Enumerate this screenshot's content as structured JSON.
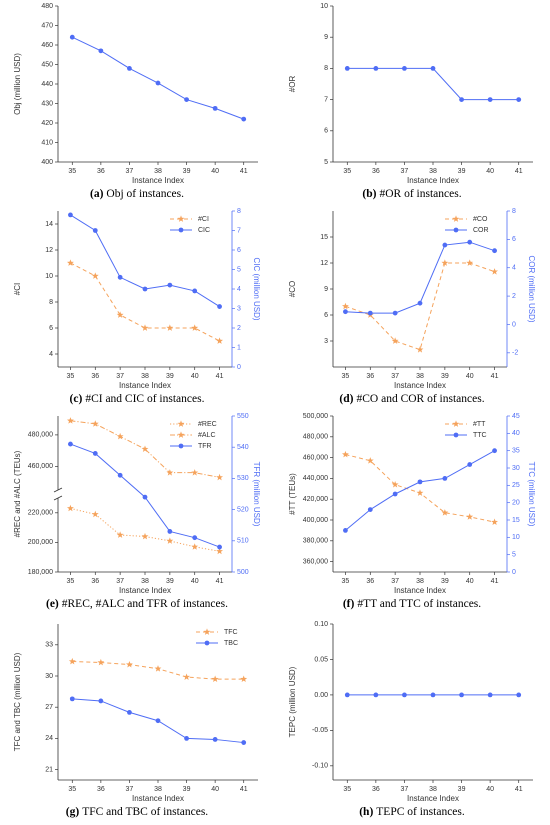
{
  "chart_data": [
    {
      "type": "line",
      "caption": {
        "label": "(a)",
        "text": "Obj of instances."
      },
      "xlabel": "Instance Index",
      "ylabel": "Obj (million USD)",
      "x": [
        35,
        36,
        37,
        38,
        39,
        40,
        41
      ],
      "xlim": [
        34.5,
        41.5
      ],
      "xticks": [
        35,
        36,
        37,
        38,
        39,
        40,
        41
      ],
      "ylim": [
        400,
        480
      ],
      "yticks": [
        400,
        410,
        420,
        430,
        440,
        450,
        460,
        470,
        480
      ],
      "series": [
        {
          "name": "Obj",
          "color": "#4f6df5",
          "style": "solid",
          "marker": "circle",
          "values": [
            464,
            457,
            448,
            440.5,
            432,
            427.5,
            422
          ]
        }
      ]
    },
    {
      "type": "line",
      "caption": {
        "label": "(b)",
        "text": "#OR of instances."
      },
      "xlabel": "Instance Index",
      "ylabel": "#OR",
      "x": [
        35,
        36,
        37,
        38,
        39,
        40,
        41
      ],
      "xlim": [
        34.5,
        41.5
      ],
      "xticks": [
        35,
        36,
        37,
        38,
        39,
        40,
        41
      ],
      "ylim": [
        5,
        10
      ],
      "yticks": [
        5,
        6,
        7,
        8,
        9,
        10
      ],
      "series": [
        {
          "name": "#OR",
          "color": "#4f6df5",
          "style": "solid",
          "marker": "circle",
          "values": [
            8,
            8,
            8,
            8,
            7,
            7,
            7
          ]
        }
      ]
    },
    {
      "type": "line",
      "caption": {
        "label": "(c)",
        "text": "#CI and CIC of instances."
      },
      "xlabel": "Instance Index",
      "ylabel": "#CI",
      "y2label": "CIC (million USD)",
      "x": [
        35,
        36,
        37,
        38,
        39,
        40,
        41
      ],
      "xlim": [
        34.5,
        41.5
      ],
      "xticks": [
        35,
        36,
        37,
        38,
        39,
        40,
        41
      ],
      "ylim": [
        3,
        15
      ],
      "yticks": [
        4,
        6,
        8,
        10,
        12,
        14
      ],
      "y2lim": [
        0,
        8
      ],
      "y2ticks": [
        0,
        1,
        2,
        3,
        4,
        5,
        6,
        7,
        8
      ],
      "y2color": "#4f6df5",
      "legend": "upper right",
      "series": [
        {
          "name": "#CI",
          "color": "#f5a35c",
          "style": "dashed",
          "marker": "star",
          "values": [
            11,
            10,
            7,
            6,
            6,
            6,
            5
          ]
        },
        {
          "name": "CIC",
          "color": "#4f6df5",
          "style": "solid",
          "marker": "circle",
          "axis": "y2",
          "values": [
            7.8,
            7.0,
            4.6,
            4.0,
            4.2,
            3.9,
            3.1
          ]
        }
      ]
    },
    {
      "type": "line",
      "caption": {
        "label": "(d)",
        "text": "#CO and COR of instances."
      },
      "xlabel": "Instance Index",
      "ylabel": "#CO",
      "y2label": "COR (million USD)",
      "x": [
        35,
        36,
        37,
        38,
        39,
        40,
        41
      ],
      "xlim": [
        34.5,
        41.5
      ],
      "xticks": [
        35,
        36,
        37,
        38,
        39,
        40,
        41
      ],
      "ylim": [
        0,
        18
      ],
      "yticks": [
        3,
        6,
        9,
        12,
        15
      ],
      "y2lim": [
        -3,
        8
      ],
      "y2ticks": [
        -2,
        0,
        2,
        4,
        6,
        8
      ],
      "y2color": "#4f6df5",
      "legend": "upper right",
      "series": [
        {
          "name": "#CO",
          "color": "#f5a35c",
          "style": "dashed",
          "marker": "star",
          "values": [
            7,
            6,
            3,
            2,
            12,
            12,
            11
          ]
        },
        {
          "name": "COR",
          "color": "#4f6df5",
          "style": "solid",
          "marker": "circle",
          "axis": "y2",
          "values": [
            0.9,
            0.8,
            0.8,
            1.5,
            5.6,
            5.8,
            5.2
          ]
        }
      ]
    },
    {
      "type": "line",
      "caption": {
        "label": "(e)",
        "text": "#REC, #ALC and TFR of instances."
      },
      "xlabel": "Instance Index",
      "ylabel": "#REC and #ALC (TEUs)",
      "y2label": "TFR (million USD)",
      "x": [
        35,
        36,
        37,
        38,
        39,
        40,
        41
      ],
      "xlim": [
        34.5,
        41.5
      ],
      "xticks": [
        35,
        36,
        37,
        38,
        39,
        40,
        41
      ],
      "ylim_segments": [
        [
          180000,
          230000
        ],
        [
          445000,
          492000
        ]
      ],
      "yticks": [
        {
          "value": 180000,
          "label": "180,000"
        },
        {
          "value": 200000,
          "label": "200,000"
        },
        {
          "value": 220000,
          "label": "220,000"
        },
        {
          "value": 460000,
          "label": "460,000"
        },
        {
          "value": 480000,
          "label": "480,000"
        }
      ],
      "y2lim": [
        500,
        550
      ],
      "y2ticks": [
        500,
        510,
        520,
        530,
        540,
        550
      ],
      "y2color": "#4f6df5",
      "legend": "upper right",
      "series": [
        {
          "name": "#REC",
          "color": "#f5a35c",
          "style": "dotted",
          "marker": "star",
          "values": [
            223000,
            219000,
            205000,
            204000,
            201000,
            197000,
            194000
          ]
        },
        {
          "name": "#ALC",
          "color": "#f5a35c",
          "style": "dashdot",
          "marker": "star",
          "values": [
            489000,
            487000,
            479000,
            471000,
            456000,
            456000,
            453000
          ]
        },
        {
          "name": "TFR",
          "color": "#4f6df5",
          "style": "solid",
          "marker": "circle",
          "axis": "y2",
          "values": [
            541,
            538,
            531,
            524,
            513,
            511,
            508
          ]
        }
      ]
    },
    {
      "type": "line",
      "caption": {
        "label": "(f)",
        "text": "#TT and TTC of instances."
      },
      "xlabel": "Instance Index",
      "ylabel": "#TT (TEUs)",
      "y2label": "TTC (million USD)",
      "x": [
        35,
        36,
        37,
        38,
        39,
        40,
        41
      ],
      "xlim": [
        34.5,
        41.5
      ],
      "xticks": [
        35,
        36,
        37,
        38,
        39,
        40,
        41
      ],
      "ylim": [
        350000,
        500000
      ],
      "yticks": [
        {
          "value": 360000,
          "label": "360,000"
        },
        {
          "value": 380000,
          "label": "380,000"
        },
        {
          "value": 400000,
          "label": "400,000"
        },
        {
          "value": 420000,
          "label": "420,000"
        },
        {
          "value": 440000,
          "label": "440,000"
        },
        {
          "value": 460000,
          "label": "460,000"
        },
        {
          "value": 480000,
          "label": "480,000"
        },
        {
          "value": 500000,
          "label": "500,000"
        }
      ],
      "y2lim": [
        0,
        45
      ],
      "y2ticks": [
        0,
        5,
        10,
        15,
        20,
        25,
        30,
        35,
        40,
        45
      ],
      "y2color": "#4f6df5",
      "legend": "upper right",
      "series": [
        {
          "name": "#TT",
          "color": "#f5a35c",
          "style": "dashed",
          "marker": "star",
          "values": [
            463000,
            457000,
            434000,
            426000,
            407000,
            403000,
            398000
          ]
        },
        {
          "name": "TTC",
          "color": "#4f6df5",
          "style": "solid",
          "marker": "circle",
          "axis": "y2",
          "values": [
            12,
            18,
            22.5,
            26,
            27,
            31,
            35
          ]
        }
      ]
    },
    {
      "type": "line",
      "caption": {
        "label": "(g)",
        "text": "TFC and TBC of instances."
      },
      "xlabel": "Instance Index",
      "ylabel": "TFC and TBC (million USD)",
      "x": [
        35,
        36,
        37,
        38,
        39,
        40,
        41
      ],
      "xlim": [
        34.5,
        41.5
      ],
      "xticks": [
        35,
        36,
        37,
        38,
        39,
        40,
        41
      ],
      "ylim": [
        20,
        35
      ],
      "yticks": [
        21,
        24,
        27,
        30,
        33
      ],
      "legend": "upper right",
      "series": [
        {
          "name": "TFC",
          "color": "#f5a35c",
          "style": "dashed",
          "marker": "star",
          "values": [
            31.4,
            31.3,
            31.1,
            30.7,
            29.9,
            29.7,
            29.7
          ]
        },
        {
          "name": "TBC",
          "color": "#4f6df5",
          "style": "solid",
          "marker": "circle",
          "values": [
            27.8,
            27.6,
            26.5,
            25.7,
            24.0,
            23.9,
            23.6
          ]
        }
      ]
    },
    {
      "type": "line",
      "caption": {
        "label": "(h)",
        "text": "TEPC of instances."
      },
      "xlabel": "Instance Index",
      "ylabel": "TEPC (million USD)",
      "x": [
        35,
        36,
        37,
        38,
        39,
        40,
        41
      ],
      "xlim": [
        34.5,
        41.5
      ],
      "xticks": [
        35,
        36,
        37,
        38,
        39,
        40,
        41
      ],
      "ylim": [
        -0.12,
        0.1
      ],
      "yticks": [
        {
          "value": -0.1,
          "label": "-0.10"
        },
        {
          "value": -0.05,
          "label": "-0.05"
        },
        {
          "value": 0,
          "label": "0.00"
        },
        {
          "value": 0.05,
          "label": "0.05"
        },
        {
          "value": 0.1,
          "label": "0.10"
        }
      ],
      "series": [
        {
          "name": "TEPC",
          "color": "#4f6df5",
          "style": "solid",
          "marker": "circle",
          "values": [
            0,
            0,
            0,
            0,
            0,
            0,
            0
          ]
        }
      ]
    }
  ]
}
